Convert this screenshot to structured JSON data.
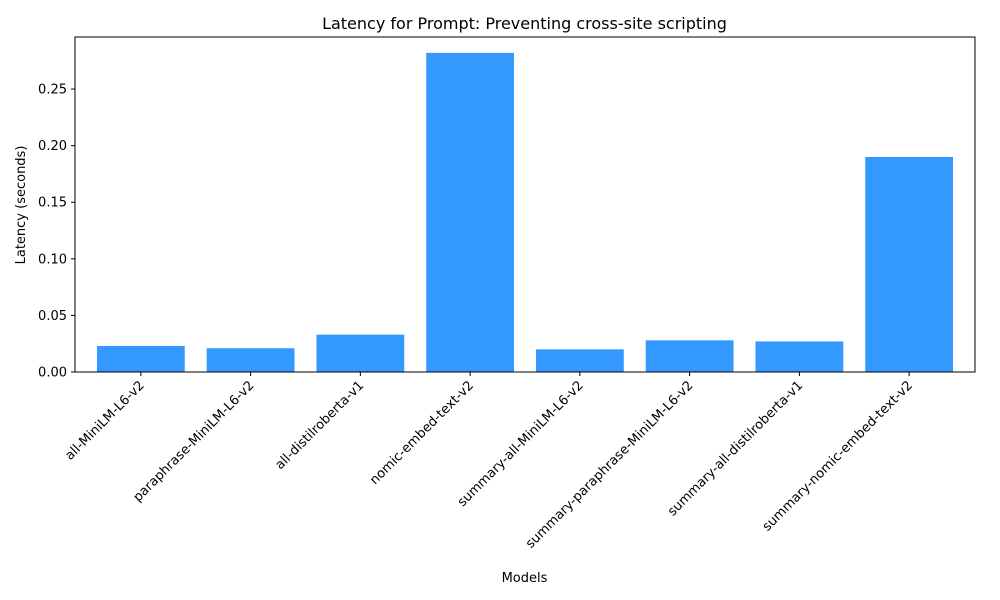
{
  "chart_data": {
    "type": "bar",
    "title": "Latency for Prompt: Preventing cross-site scripting",
    "xlabel": "Models",
    "ylabel": "Latency (seconds)",
    "categories": [
      "all-MiniLM-L6-v2",
      "paraphrase-MiniLM-L6-v2",
      "all-distilroberta-v1",
      "nomic-embed-text-v2",
      "summary-all-MiniLM-L6-v2",
      "summary-paraphrase-MiniLM-L6-v2",
      "summary-all-distilroberta-v1",
      "summary-nomic-embed-text-v2"
    ],
    "values": [
      0.023,
      0.021,
      0.033,
      0.282,
      0.02,
      0.028,
      0.027,
      0.19
    ],
    "ylim": [
      0,
      0.296
    ],
    "yticks": [
      0.0,
      0.05,
      0.1,
      0.15,
      0.2,
      0.25
    ],
    "ytick_labels": [
      "0.00",
      "0.05",
      "0.10",
      "0.15",
      "0.20",
      "0.25"
    ],
    "bar_color": "#3399ff",
    "grid": false
  }
}
